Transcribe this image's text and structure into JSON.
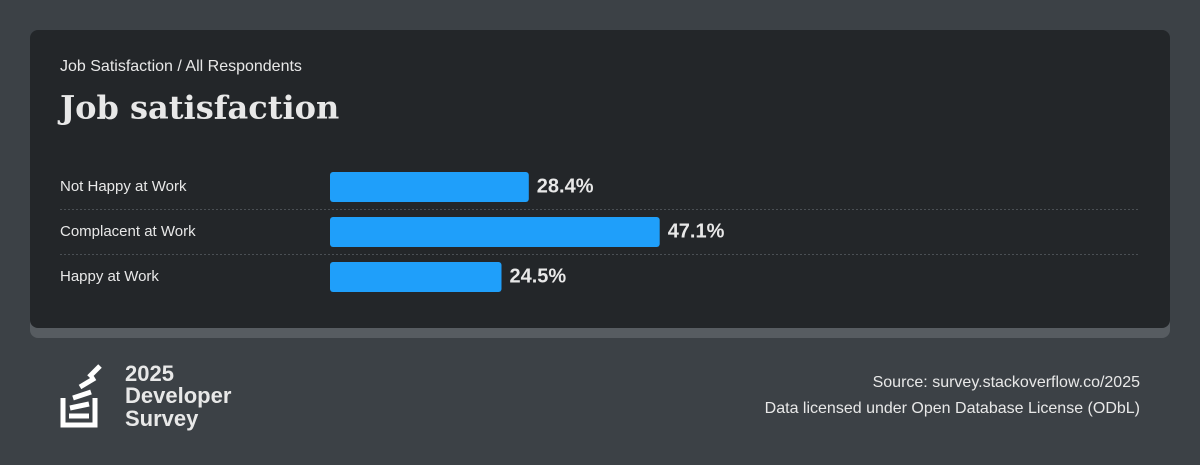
{
  "chart_data": {
    "type": "hbar",
    "subtitle": "Job Satisfaction / All Respondents",
    "title": "Job satisfaction",
    "categories": [
      "Not Happy at Work",
      "Complacent at Work",
      "Happy at Work"
    ],
    "values": [
      28.4,
      47.1,
      24.5
    ],
    "value_labels": [
      "28.4%",
      "47.1%",
      "24.5%"
    ],
    "color": "#1f9ffa"
  },
  "footer": {
    "logo": [
      "2025",
      "Developer",
      "Survey"
    ],
    "source": "Source: survey.stackoverflow.co/2025",
    "license": "Data licensed under Open Database License (ODbL)"
  }
}
